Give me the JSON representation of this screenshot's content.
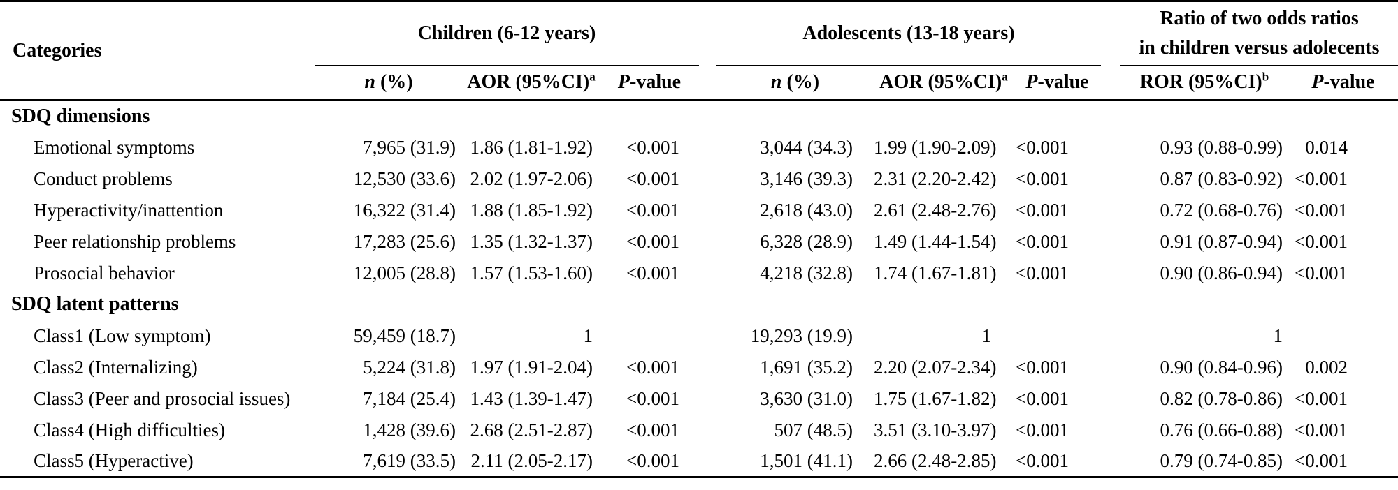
{
  "table": {
    "categories_header": "Categories",
    "groups": {
      "children": {
        "label": "Children (6-12 years)"
      },
      "adolescents": {
        "label": "Adolescents (13-18 years)"
      },
      "ror": {
        "label_line1": "Ratio of two odds ratios",
        "label_line2": "in children versus adolecents"
      }
    },
    "subheaders": {
      "n_italic": "n",
      "n_rest": " (%)",
      "aor_main": "AOR (95%CI)",
      "aor_sup": "a",
      "p_italic": "P",
      "p_rest": "-value",
      "ror_main": "ROR (95%CI)",
      "ror_sup": "b"
    },
    "rows": [
      {
        "type": "section",
        "label": "SDQ dimensions"
      },
      {
        "type": "data",
        "label": "Emotional symptoms",
        "cells": [
          "7,965 (31.9)",
          "1.86 (1.81-1.92)",
          "<0.001",
          "3,044 (34.3)",
          "1.99 (1.90-2.09)",
          "<0.001",
          "0.93 (0.88-0.99)",
          "0.014"
        ]
      },
      {
        "type": "data",
        "label": "Conduct problems",
        "cells": [
          "12,530 (33.6)",
          "2.02 (1.97-2.06)",
          "<0.001",
          "3,146 (39.3)",
          "2.31 (2.20-2.42)",
          "<0.001",
          "0.87 (0.83-0.92)",
          "<0.001"
        ]
      },
      {
        "type": "data",
        "label": "Hyperactivity/inattention",
        "cells": [
          "16,322 (31.4)",
          "1.88 (1.85-1.92)",
          "<0.001",
          "2,618 (43.0)",
          "2.61 (2.48-2.76)",
          "<0.001",
          "0.72 (0.68-0.76)",
          "<0.001"
        ]
      },
      {
        "type": "data",
        "label": "Peer relationship problems",
        "cells": [
          "17,283 (25.6)",
          "1.35 (1.32-1.37)",
          "<0.001",
          "6,328 (28.9)",
          "1.49 (1.44-1.54)",
          "<0.001",
          "0.91 (0.87-0.94)",
          "<0.001"
        ]
      },
      {
        "type": "data",
        "label": "Prosocial behavior",
        "cells": [
          "12,005 (28.8)",
          "1.57 (1.53-1.60)",
          "<0.001",
          "4,218 (32.8)",
          "1.74 (1.67-1.81)",
          "<0.001",
          "0.90 (0.86-0.94)",
          "<0.001"
        ]
      },
      {
        "type": "section",
        "label": "SDQ latent patterns"
      },
      {
        "type": "data",
        "label": "Class1 (Low symptom)",
        "cells": [
          "59,459 (18.7)",
          "1",
          "",
          "19,293 (19.9)",
          "1",
          "",
          "1",
          ""
        ]
      },
      {
        "type": "data",
        "label": "Class2 (Internalizing)",
        "cells": [
          "5,224 (31.8)",
          "1.97 (1.91-2.04)",
          "<0.001",
          "1,691 (35.2)",
          "2.20 (2.07-2.34)",
          "<0.001",
          "0.90 (0.84-0.96)",
          "0.002"
        ]
      },
      {
        "type": "data",
        "label": "Class3 (Peer and prosocial issues)",
        "cells": [
          "7,184 (25.4)",
          "1.43 (1.39-1.47)",
          "<0.001",
          "3,630 (31.0)",
          "1.75 (1.67-1.82)",
          "<0.001",
          "0.82 (0.78-0.86)",
          "<0.001"
        ]
      },
      {
        "type": "data",
        "label": "Class4 (High difficulties)",
        "cells": [
          "1,428 (39.6)",
          "2.68 (2.51-2.87)",
          "<0.001",
          "507 (48.5)",
          "3.51 (3.10-3.97)",
          "<0.001",
          "0.76 (0.66-0.88)",
          "<0.001"
        ]
      },
      {
        "type": "data",
        "label": "Class5 (Hyperactive)",
        "cells": [
          "7,619 (33.5)",
          "2.11 (2.05-2.17)",
          "<0.001",
          "1,501 (41.1)",
          "2.66 (2.48-2.85)",
          "<0.001",
          "0.79 (0.74-0.85)",
          "<0.001"
        ]
      }
    ],
    "colors": {
      "text": "#000000",
      "background": "#ffffff",
      "rule": "#000000"
    }
  }
}
